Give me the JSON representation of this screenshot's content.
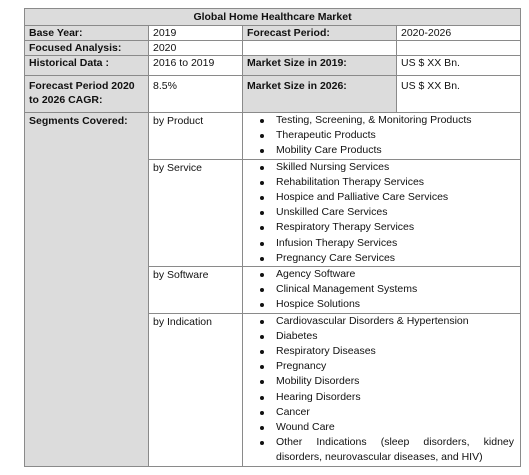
{
  "title": "Global Home Healthcare Market",
  "rows": {
    "base_year": {
      "label": "Base Year:",
      "value": "2019"
    },
    "forecast_period": {
      "label": "Forecast Period:",
      "value": "2020-2026"
    },
    "focused_analysis": {
      "label": "Focused Analysis:",
      "value": "2020"
    },
    "historical_data": {
      "label": "Historical Data :",
      "value": "2016 to 2019"
    },
    "market_size_2019": {
      "label": "Market Size in 2019:",
      "value": "US $ XX Bn."
    },
    "forecast_cagr": {
      "label": "Forecast Period 2020 to 2026 CAGR:",
      "value": "8.5%"
    },
    "market_size_2026": {
      "label": "Market Size in 2026:",
      "value": "US $ XX Bn."
    }
  },
  "segments": {
    "label": "Segments Covered:",
    "groups": [
      {
        "category": "by Product",
        "items": [
          "Testing, Screening, & Monitoring Products",
          "Therapeutic Products",
          "Mobility Care Products"
        ]
      },
      {
        "category": "by Service",
        "items": [
          "Skilled Nursing Services",
          "Rehabilitation Therapy Services",
          "Hospice and Palliative Care Services",
          "Unskilled Care Services",
          "Respiratory Therapy Services",
          "Infusion Therapy Services",
          "Pregnancy Care Services"
        ]
      },
      {
        "category": "by Software",
        "items": [
          "Agency Software",
          "Clinical Management Systems",
          "Hospice Solutions"
        ]
      },
      {
        "category": "by Indication",
        "items": [
          "Cardiovascular Disorders & Hypertension",
          "Diabetes",
          "Respiratory Diseases",
          "Pregnancy",
          "Mobility Disorders",
          "Hearing Disorders",
          "Cancer",
          "Wound Care",
          "Other Indications (sleep disorders, kidney disorders, neurovascular diseases, and HIV)"
        ]
      }
    ]
  }
}
